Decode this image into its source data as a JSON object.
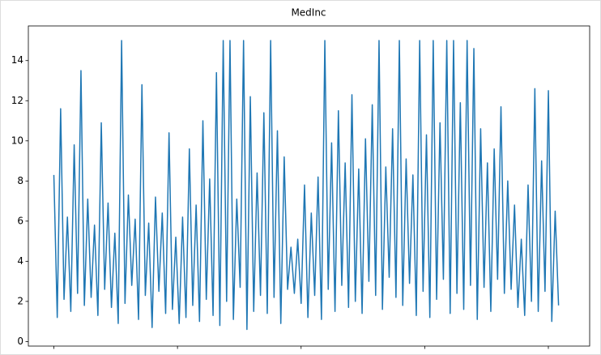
{
  "chart_data": {
    "type": "line",
    "title": "MedInc",
    "x": [
      0,
      137,
      274,
      411,
      548,
      685,
      822,
      959,
      1096,
      1233,
      1370,
      1507,
      1644,
      1781,
      1918,
      2055,
      2192,
      2329,
      2466,
      2603,
      2740,
      2877,
      3014,
      3151,
      3288,
      3425,
      3562,
      3699,
      3836,
      3973,
      4110,
      4247,
      4384,
      4521,
      4658,
      4795,
      4932,
      5069,
      5206,
      5343,
      5480,
      5617,
      5754,
      5891,
      6028,
      6165,
      6302,
      6439,
      6576,
      6713,
      6850,
      6987,
      7124,
      7261,
      7398,
      7535,
      7672,
      7809,
      7946,
      8083,
      8220,
      8357,
      8494,
      8631,
      8768,
      8905,
      9042,
      9179,
      9316,
      9453,
      9590,
      9727,
      9864,
      10001,
      10138,
      10275,
      10412,
      10549,
      10686,
      10823,
      10960,
      11097,
      11234,
      11371,
      11508,
      11645,
      11782,
      11919,
      12056,
      12193,
      12330,
      12467,
      12604,
      12741,
      12878,
      13015,
      13152,
      13289,
      13426,
      13563,
      13700,
      13837,
      13974,
      14111,
      14248,
      14385,
      14522,
      14659,
      14796,
      14933,
      15070,
      15207,
      15344,
      15481,
      15618,
      15755,
      15892,
      16029,
      16166,
      16303,
      16440,
      16577,
      16714,
      16851,
      16988,
      17125,
      17262,
      17399,
      17536,
      17673,
      17810,
      17947,
      18084,
      18221,
      18358,
      18495,
      18632,
      18769,
      18906,
      19043,
      19180,
      19317,
      19454,
      19591,
      19728,
      19865,
      20002,
      20139,
      20276,
      20413
    ],
    "series": [
      {
        "name": "MedInc",
        "color": "#1f77b4",
        "values": [
          8.3,
          1.2,
          11.6,
          2.1,
          6.2,
          1.5,
          9.8,
          2.4,
          13.5,
          1.8,
          7.1,
          2.2,
          5.8,
          1.3,
          10.9,
          2.6,
          6.9,
          1.7,
          5.4,
          0.9,
          15,
          1.9,
          7.3,
          2.8,
          6.1,
          1.1,
          12.8,
          2.3,
          5.9,
          0.7,
          7.2,
          2.5,
          6.4,
          1.4,
          10.4,
          1.6,
          5.2,
          0.9,
          6.2,
          1.2,
          9.6,
          1.8,
          6.8,
          1.0,
          11.0,
          2.1,
          8.1,
          1.3,
          13.4,
          0.8,
          15,
          2.0,
          15,
          1.1,
          7.1,
          2.7,
          15,
          0.6,
          12.2,
          1.5,
          8.4,
          2.3,
          11.4,
          1.4,
          15,
          2.2,
          10.5,
          0.9,
          9.2,
          2.6,
          4.7,
          2.4,
          5.1,
          1.9,
          7.8,
          1.2,
          6.4,
          2.3,
          8.2,
          1.1,
          15,
          2.6,
          9.9,
          1.5,
          11.5,
          2.8,
          8.9,
          1.7,
          12.3,
          2.0,
          8.6,
          1.4,
          10.1,
          3.0,
          11.8,
          2.3,
          15,
          1.6,
          8.7,
          3.2,
          10.6,
          2.2,
          15,
          1.8,
          9.1,
          2.9,
          8.3,
          1.3,
          15,
          2.5,
          10.3,
          1.2,
          15,
          2.1,
          10.9,
          3.1,
          15,
          1.4,
          15,
          2.4,
          11.9,
          1.6,
          15,
          2.8,
          14.6,
          1.1,
          10.6,
          2.7,
          8.9,
          1.5,
          9.6,
          3.1,
          11.7,
          2.4,
          8.0,
          2.6,
          6.8,
          1.7,
          5.1,
          1.3,
          7.8,
          2.0,
          12.6,
          1.5,
          9.0,
          2.5,
          12.5,
          1.0,
          6.5,
          1.8
        ]
      }
    ],
    "xlim": [
      -1032,
      21671
    ],
    "xticks": [
      0,
      5000,
      10000,
      15000,
      20000
    ],
    "ylim": [
      -0.226,
      15.726
    ],
    "yticks": [
      0,
      2,
      4,
      6,
      8,
      10,
      12,
      14
    ]
  }
}
